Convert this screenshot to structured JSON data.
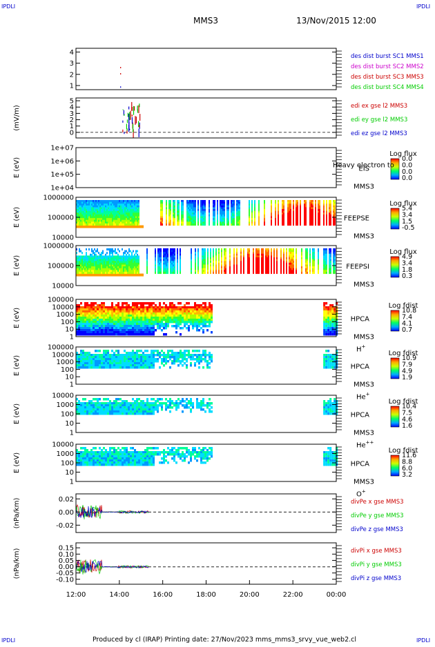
{
  "corner_left": "IPDLI",
  "corner_right": "IPDLI",
  "header": {
    "mission": "MMS3",
    "datetime": "13/Nov/2015 12:00"
  },
  "footer": "Produced by cl (IRAP)   Printing date: 27/Nov/2023   mms_mms3_srvy_vue_web2.cl",
  "colors": {
    "mms1": "#0000cc",
    "mms2": "#cc00cc",
    "mms3": "#cc0000",
    "mms4": "#00cc00",
    "ex": "#cc0000",
    "ey": "#00cc00",
    "ez": "#0000cc"
  },
  "chart_data": {
    "type": "multi-panel-timeseries",
    "x_ticks": [
      "12:00",
      "14:00",
      "16:00",
      "18:00",
      "20:00",
      "22:00",
      "00:00"
    ],
    "panels": [
      {
        "id": "dist",
        "type": "line",
        "ylabel": "",
        "yticks": [
          "1",
          "2",
          "3",
          "4"
        ],
        "legend": [
          {
            "label": "des dist burst SC1 MMS1",
            "color": "#0000cc"
          },
          {
            "label": "des dist burst SC2 MMS2",
            "color": "#cc00cc"
          },
          {
            "label": "des dist burst SC3 MMS3",
            "color": "#cc0000"
          },
          {
            "label": "des dist burst SC4 MMS4",
            "color": "#00cc00"
          }
        ]
      },
      {
        "id": "edi",
        "type": "line",
        "ylabel": "(mV/m)",
        "yticks": [
          "0",
          "1",
          "2",
          "3",
          "4",
          "5"
        ],
        "legend": [
          {
            "label": "edi ex gse l2 MMS3",
            "color": "#cc0000"
          },
          {
            "label": "edi ey gse l2 MMS3",
            "color": "#00cc00"
          },
          {
            "label": "edi ez gse l2 MMS3",
            "color": "#0000cc"
          }
        ]
      },
      {
        "id": "eis",
        "type": "heatmap",
        "ylabel": "E (eV)",
        "yticks": [
          "1e+04",
          "1e+05",
          "1e+06",
          "1e+07"
        ],
        "instrument": "EIS",
        "subtitle": "Heavy electron to",
        "sc": "MMS3",
        "species": "",
        "cb_title": "Log flux",
        "cb_ticks": [
          "0.0",
          "0.0",
          "0.0",
          "0.0"
        ]
      },
      {
        "id": "feepse",
        "type": "heatmap",
        "ylabel": "E (eV)",
        "yticks": [
          "10000",
          "100000",
          "1000000"
        ],
        "instrument": "FEEPSE",
        "sc": "MMS3",
        "species": "",
        "cb_title": "Log flux",
        "cb_ticks": [
          "5.4",
          "3.4",
          "1.5",
          "-0.5"
        ]
      },
      {
        "id": "feepsi",
        "type": "heatmap",
        "ylabel": "E (eV)",
        "yticks": [
          "10000",
          "100000",
          "1000000"
        ],
        "instrument": "FEEPSI",
        "sc": "MMS3",
        "species": "",
        "cb_title": "Log flux",
        "cb_ticks": [
          "4.9",
          "3.4",
          "1.8",
          "0.3"
        ]
      },
      {
        "id": "hpca_h",
        "type": "heatmap",
        "ylabel": "E (eV)",
        "yticks": [
          "1",
          "10",
          "100",
          "1000",
          "10000",
          "100000"
        ],
        "instrument": "HPCA",
        "sc": "MMS3",
        "species": "H",
        "species_sup": "+",
        "cb_title": "Log fdist",
        "cb_ticks": [
          "10.8",
          "7.4",
          "4.1",
          "0.7"
        ]
      },
      {
        "id": "hpca_he",
        "type": "heatmap",
        "ylabel": "E (eV)",
        "yticks": [
          "1",
          "10",
          "100",
          "1000",
          "10000",
          "100000"
        ],
        "instrument": "HPCA",
        "sc": "MMS3",
        "species": "He",
        "species_sup": "+",
        "cb_title": "Log fdist",
        "cb_ticks": [
          "10.9",
          "7.9",
          "4.9",
          "1.9"
        ]
      },
      {
        "id": "hpca_he2",
        "type": "heatmap",
        "ylabel": "E (eV)",
        "yticks": [
          "1",
          "10",
          "100",
          "1000",
          "10000"
        ],
        "instrument": "HPCA",
        "sc": "MMS3",
        "species": "He",
        "species_sup": "++",
        "cb_title": "Log fdist",
        "cb_ticks": [
          "10.4",
          "7.5",
          "4.6",
          "1.6"
        ]
      },
      {
        "id": "hpca_o",
        "type": "heatmap",
        "ylabel": "E (eV)",
        "yticks": [
          "1",
          "10",
          "100",
          "1000",
          "10000"
        ],
        "instrument": "HPCA",
        "sc": "MMS3",
        "species": "O",
        "species_sup": "+",
        "cb_title": "Log fdist",
        "cb_ticks": [
          "11.6",
          "8.8",
          "6.0",
          "3.2"
        ]
      },
      {
        "id": "divpe",
        "type": "line",
        "ylabel": "(nPa/km)",
        "yticks": [
          "-0.02",
          "0.00",
          "0.02"
        ],
        "legend": [
          {
            "label": "divPe x gse MMS3",
            "color": "#cc0000"
          },
          {
            "label": "divPe y gse MMS3",
            "color": "#00cc00"
          },
          {
            "label": "divPe z gse MMS3",
            "color": "#0000cc"
          }
        ]
      },
      {
        "id": "divpi",
        "type": "line",
        "ylabel": "(nPa/km)",
        "yticks": [
          "-0.10",
          "-0.05",
          "0.00",
          "0.05",
          "0.10",
          "0.15"
        ],
        "legend": [
          {
            "label": "divPi x gse MMS3",
            "color": "#cc0000"
          },
          {
            "label": "divPi y gse MMS3",
            "color": "#00cc00"
          },
          {
            "label": "divPi z gse MMS3",
            "color": "#0000cc"
          }
        ]
      }
    ]
  }
}
